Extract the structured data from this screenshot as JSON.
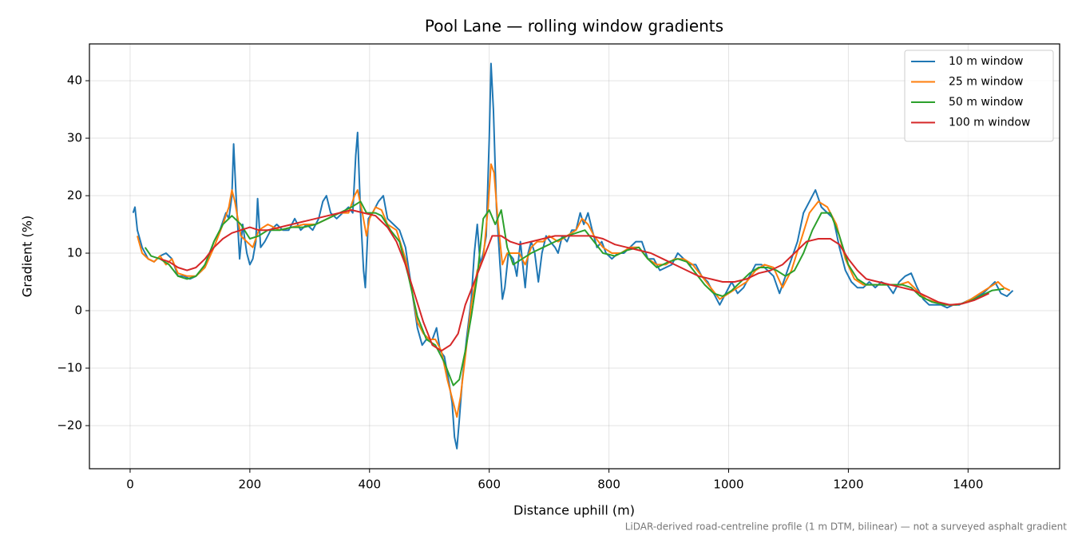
{
  "chart_data": {
    "type": "line",
    "title": "Pool Lane — rolling window gradients",
    "x_label": "Distance uphill (m)",
    "y_label": "Gradient (%)",
    "annotation": "LiDAR-derived road-centreline profile (1 m DTM, bilinear) — not a surveyed asphalt gradient",
    "xlim": [
      -68,
      1553
    ],
    "ylim": [
      -27.5,
      46.4
    ],
    "xticks": [
      0,
      200,
      400,
      600,
      800,
      1000,
      1200,
      1400
    ],
    "yticks": [
      {
        "value": -20,
        "label": "−20"
      },
      {
        "value": -10,
        "label": "−10"
      },
      0,
      10,
      20,
      30,
      40
    ],
    "grid": true,
    "legend": "upper right",
    "series": [
      {
        "name": "10 m window",
        "color": "#1f77b4",
        "x": [
          5,
          8,
          12,
          20,
          30,
          40,
          50,
          60,
          70,
          80,
          90,
          100,
          110,
          120,
          130,
          140,
          150,
          160,
          165,
          170,
          173,
          177,
          183,
          188,
          195,
          200,
          205,
          210,
          213,
          218,
          225,
          235,
          245,
          255,
          265,
          275,
          285,
          295,
          305,
          315,
          322,
          328,
          335,
          345,
          355,
          365,
          372,
          377,
          380,
          385,
          390,
          393,
          398,
          405,
          415,
          423,
          430,
          440,
          450,
          460,
          470,
          480,
          488,
          495,
          505,
          512,
          518,
          525,
          532,
          538,
          542,
          546,
          550,
          555,
          562,
          570,
          575,
          580,
          585,
          590,
          595,
          600,
          603,
          607,
          612,
          618,
          622,
          626,
          632,
          640,
          646,
          652,
          660,
          665,
          670,
          676,
          682,
          688,
          695,
          702,
          710,
          715,
          722,
          730,
          738,
          745,
          752,
          758,
          765,
          772,
          780,
          788,
          795,
          805,
          815,
          825,
          835,
          845,
          855,
          865,
          875,
          885,
          895,
          905,
          915,
          925,
          935,
          945,
          955,
          965,
          975,
          985,
          995,
          1005,
          1015,
          1025,
          1035,
          1045,
          1055,
          1065,
          1075,
          1085,
          1095,
          1105,
          1115,
          1125,
          1135,
          1145,
          1155,
          1165,
          1175,
          1185,
          1195,
          1205,
          1215,
          1225,
          1235,
          1245,
          1255,
          1265,
          1275,
          1285,
          1295,
          1305,
          1315,
          1325,
          1335,
          1345,
          1355,
          1365,
          1375,
          1385,
          1395,
          1405,
          1415,
          1425,
          1435,
          1445,
          1455,
          1465,
          1475
        ],
        "values": [
          17,
          18,
          14,
          11,
          9,
          8.5,
          9.5,
          10,
          9,
          6,
          6,
          5.5,
          6,
          7,
          9,
          12,
          14,
          17,
          16,
          20,
          29,
          20,
          9,
          15,
          10,
          8,
          9,
          12,
          19.5,
          11,
          12,
          14,
          15,
          14,
          14,
          16,
          14,
          15,
          14,
          16,
          19,
          20,
          17,
          16,
          17,
          18,
          17,
          27,
          31,
          17,
          7,
          4,
          16,
          17,
          19,
          20,
          16,
          15,
          14,
          11,
          4,
          -3,
          -6,
          -5,
          -5,
          -3,
          -7,
          -8,
          -12,
          -16,
          -22,
          -24,
          -19,
          -12,
          -5,
          2,
          10,
          15,
          8,
          10,
          13,
          30,
          43,
          35,
          18,
          8,
          2,
          4,
          10,
          9,
          6,
          12,
          4,
          10,
          12,
          10,
          5,
          10,
          13,
          12,
          11,
          10,
          13,
          12,
          14,
          14,
          17,
          15,
          17,
          14,
          11,
          12,
          10,
          9,
          10,
          10,
          11,
          12,
          12,
          9,
          9,
          7,
          7.5,
          8,
          10,
          9,
          8,
          8,
          6,
          5,
          3,
          1,
          3,
          5,
          3,
          4,
          6,
          8,
          8,
          7,
          6,
          3,
          6,
          9,
          12,
          17,
          19,
          21,
          18,
          17,
          16,
          11,
          7,
          5,
          4,
          4,
          5,
          4,
          5,
          4.5,
          3,
          5,
          6,
          6.5,
          4,
          2,
          1,
          1,
          1,
          0.5,
          1,
          1,
          1.5,
          2,
          2.5,
          3,
          4,
          5,
          3,
          2.5,
          3.5
        ]
      },
      {
        "name": "25 m window",
        "color": "#ff7f0e",
        "x": [
          12,
          20,
          30,
          40,
          50,
          60,
          70,
          80,
          95,
          110,
          125,
          140,
          155,
          165,
          170,
          175,
          185,
          195,
          205,
          215,
          230,
          250,
          270,
          290,
          310,
          330,
          350,
          365,
          375,
          380,
          388,
          395,
          400,
          410,
          420,
          430,
          445,
          460,
          470,
          480,
          490,
          500,
          510,
          520,
          530,
          540,
          546,
          552,
          560,
          570,
          580,
          590,
          598,
          603,
          608,
          615,
          622,
          630,
          640,
          650,
          660,
          670,
          680,
          690,
          700,
          715,
          730,
          745,
          755,
          765,
          775,
          790,
          805,
          820,
          835,
          850,
          865,
          880,
          895,
          910,
          925,
          940,
          955,
          970,
          985,
          1000,
          1015,
          1030,
          1045,
          1060,
          1075,
          1090,
          1105,
          1120,
          1135,
          1150,
          1165,
          1180,
          1195,
          1210,
          1225,
          1245,
          1265,
          1285,
          1300,
          1315,
          1330,
          1345,
          1360,
          1375,
          1390,
          1405,
          1420,
          1435,
          1450,
          1460,
          1470
        ],
        "values": [
          13,
          10,
          9,
          8.5,
          9.5,
          8,
          9,
          6.5,
          6,
          6,
          7.5,
          11,
          15,
          18,
          21,
          19,
          13,
          12,
          11,
          14,
          15,
          14,
          14.5,
          15,
          15,
          16,
          17,
          17,
          20,
          21,
          17,
          13,
          16,
          18,
          17.5,
          15,
          14,
          9,
          4,
          -2,
          -4,
          -5,
          -5,
          -7,
          -12,
          -16,
          -18.5,
          -15,
          -8,
          1,
          7,
          9,
          18,
          25.5,
          24,
          15,
          8,
          10,
          10,
          10,
          8,
          11,
          12,
          12,
          13,
          12,
          13,
          14,
          16,
          15,
          13,
          11,
          10,
          10,
          11,
          11,
          9,
          8,
          8,
          9,
          9,
          8,
          6,
          4,
          2,
          3,
          4,
          5,
          7,
          8,
          7.5,
          4,
          7,
          12,
          17,
          19,
          18,
          15,
          9,
          5.5,
          4.5,
          4.5,
          4.5,
          4.5,
          5,
          3.5,
          2,
          1.5,
          1,
          1,
          1.2,
          2,
          3,
          4,
          5,
          4,
          3.5
        ]
      },
      {
        "name": "50 m window",
        "color": "#2ca02c",
        "x": [
          25,
          35,
          50,
          65,
          80,
          95,
          110,
          125,
          140,
          155,
          170,
          185,
          200,
          215,
          230,
          250,
          270,
          290,
          310,
          330,
          350,
          370,
          385,
          395,
          410,
          420,
          435,
          450,
          465,
          480,
          495,
          510,
          525,
          540,
          550,
          560,
          570,
          580,
          590,
          600,
          610,
          620,
          630,
          640,
          655,
          670,
          690,
          710,
          730,
          745,
          760,
          775,
          790,
          810,
          830,
          850,
          865,
          880,
          900,
          915,
          930,
          945,
          960,
          975,
          990,
          1005,
          1020,
          1035,
          1050,
          1065,
          1080,
          1095,
          1110,
          1125,
          1140,
          1155,
          1170,
          1185,
          1200,
          1215,
          1230,
          1250,
          1270,
          1290,
          1305,
          1320,
          1340,
          1360,
          1380,
          1400,
          1420,
          1440,
          1460
        ],
        "values": [
          11,
          9.5,
          9,
          8,
          6,
          5.5,
          6,
          8,
          12,
          15,
          16.5,
          15,
          12.5,
          13,
          14,
          14,
          14.5,
          14.5,
          15,
          16,
          17,
          18,
          19,
          17,
          17,
          16.5,
          14,
          12,
          6,
          -1,
          -5,
          -6,
          -9,
          -13,
          -12,
          -7,
          -1,
          6,
          16,
          17.5,
          15,
          17.5,
          11,
          8,
          9,
          10,
          11,
          12,
          13,
          13.5,
          14,
          12,
          10,
          9.5,
          10.5,
          11,
          9,
          7.5,
          8.5,
          9,
          8.5,
          6.5,
          4.5,
          3,
          2.5,
          3.5,
          5,
          6.5,
          7.5,
          7.5,
          7,
          6,
          7,
          10,
          14,
          17,
          17,
          13,
          8,
          5.5,
          4.5,
          4.5,
          4.5,
          4.5,
          4,
          2.5,
          1.5,
          1,
          1,
          1.5,
          2.5,
          3.5,
          3.8
        ]
      },
      {
        "name": "100 m window",
        "color": "#d62728",
        "x": [
          50,
          65,
          80,
          95,
          110,
          125,
          140,
          155,
          170,
          185,
          200,
          215,
          230,
          250,
          270,
          290,
          310,
          330,
          350,
          370,
          390,
          410,
          430,
          445,
          460,
          475,
          490,
          505,
          520,
          535,
          548,
          560,
          575,
          590,
          605,
          620,
          635,
          650,
          670,
          690,
          710,
          730,
          750,
          770,
          790,
          810,
          830,
          850,
          870,
          890,
          910,
          930,
          950,
          970,
          990,
          1010,
          1030,
          1050,
          1070,
          1090,
          1110,
          1130,
          1150,
          1170,
          1185,
          1200,
          1215,
          1230,
          1250,
          1270,
          1290,
          1310,
          1330,
          1350,
          1370,
          1390,
          1410,
          1425,
          1435
        ],
        "values": [
          9,
          8.5,
          7.5,
          7,
          7.5,
          9,
          11,
          12.5,
          13.5,
          14,
          14.5,
          14,
          14,
          14.5,
          15,
          15.5,
          16,
          16.5,
          17,
          17.5,
          17,
          16.5,
          14.5,
          12,
          8,
          3,
          -2,
          -6,
          -7,
          -6,
          -4,
          1,
          5,
          9,
          13,
          13,
          12,
          11.5,
          12,
          12.5,
          13,
          13,
          13,
          13,
          12.5,
          11.5,
          11,
          10.5,
          10,
          9,
          8,
          7,
          6,
          5.5,
          5,
          5,
          5.5,
          6.5,
          7,
          8,
          10,
          12,
          12.5,
          12.5,
          11.5,
          9,
          7,
          5.5,
          5,
          4.5,
          4,
          3.5,
          2.5,
          1.5,
          1,
          1.2,
          1.8,
          2.5,
          3
        ]
      }
    ]
  }
}
